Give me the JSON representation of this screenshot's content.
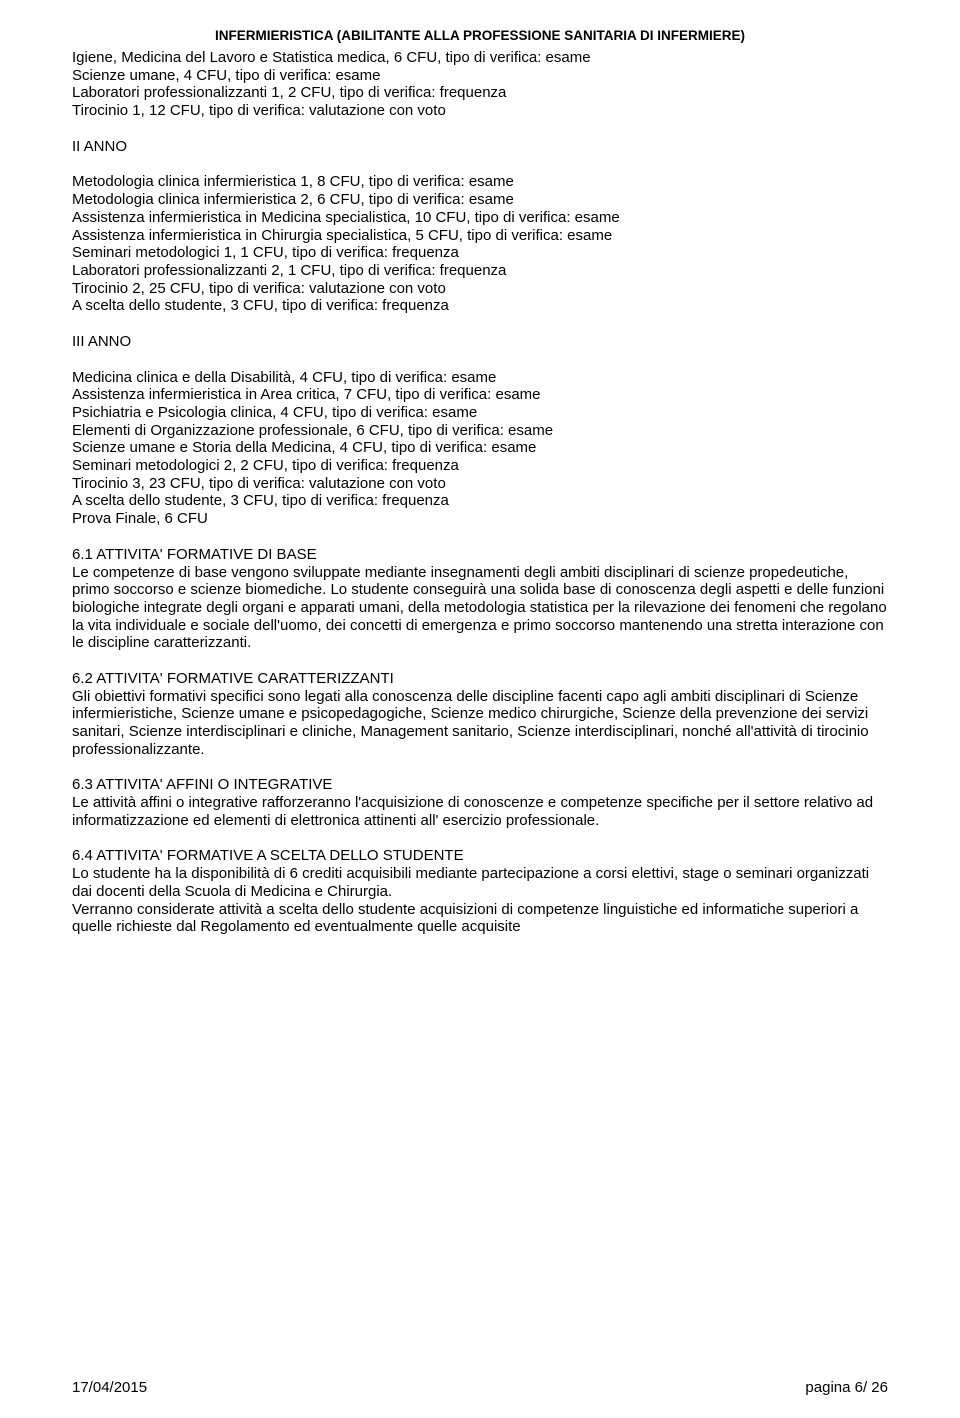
{
  "header": "INFERMIERISTICA (ABILITANTE ALLA PROFESSIONE SANITARIA DI INFERMIERE)",
  "anno1_lines": [
    "Igiene, Medicina del Lavoro e Statistica medica, 6 CFU, tipo di verifica: esame",
    "Scienze umane, 4 CFU, tipo di verifica: esame",
    "Laboratori professionalizzanti 1, 2 CFU, tipo di verifica: frequenza",
    "Tirocinio 1, 12 CFU, tipo di verifica: valutazione con voto"
  ],
  "anno2_label": "II ANNO",
  "anno2_lines": [
    "Metodologia clinica infermieristica 1, 8 CFU, tipo di verifica: esame",
    "Metodologia clinica infermieristica 2, 6 CFU, tipo di verifica: esame",
    "Assistenza infermieristica in Medicina specialistica, 10 CFU, tipo di verifica: esame",
    "Assistenza infermieristica in Chirurgia specialistica, 5 CFU, tipo di verifica: esame",
    "Seminari metodologici 1, 1 CFU, tipo di verifica: frequenza",
    "Laboratori professionalizzanti 2, 1 CFU, tipo di verifica: frequenza",
    "Tirocinio 2, 25 CFU, tipo di verifica: valutazione con voto",
    "A scelta dello studente, 3 CFU, tipo di verifica: frequenza"
  ],
  "anno3_label": "III ANNO",
  "anno3_lines": [
    "Medicina clinica e della Disabilità, 4 CFU, tipo di verifica: esame",
    "Assistenza infermieristica in Area critica, 7 CFU, tipo di verifica: esame",
    "Psichiatria e Psicologia clinica, 4 CFU, tipo di verifica: esame",
    "Elementi di Organizzazione professionale, 6 CFU, tipo di verifica: esame",
    "Scienze umane e Storia della Medicina, 4 CFU, tipo di verifica: esame",
    "Seminari metodologici 2, 2 CFU, tipo di verifica: frequenza",
    "Tirocinio 3, 23 CFU, tipo di verifica: valutazione con voto",
    "A scelta dello studente, 3 CFU, tipo di verifica: frequenza",
    "Prova Finale, 6 CFU"
  ],
  "s61_title": "6.1 ATTIVITA' FORMATIVE DI BASE",
  "s61_body": "Le competenze di base vengono sviluppate mediante insegnamenti degli ambiti disciplinari di scienze propedeutiche, primo soccorso e scienze biomediche. Lo studente conseguirà una solida base di conoscenza degli aspetti e delle funzioni biologiche integrate degli organi e apparati umani, della metodologia statistica per la rilevazione dei fenomeni che regolano la vita individuale e sociale dell'uomo, dei concetti di emergenza e primo soccorso mantenendo una stretta interazione con le discipline caratterizzanti.",
  "s62_title": "6.2 ATTIVITA' FORMATIVE CARATTERIZZANTI",
  "s62_body": "Gli obiettivi formativi specifici sono legati alla conoscenza delle discipline facenti capo agli ambiti disciplinari di Scienze infermieristiche, Scienze umane e psicopedagogiche, Scienze medico chirurgiche, Scienze della prevenzione dei servizi sanitari, Scienze interdisciplinari e cliniche, Management sanitario, Scienze interdisciplinari, nonché all'attività di tirocinio professionalizzante.",
  "s63_title": "6.3 ATTIVITA' AFFINI O INTEGRATIVE",
  "s63_body": "Le attività affini o integrative rafforzeranno l'acquisizione di conoscenze e competenze specifiche per il settore relativo ad informatizzazione ed elementi di elettronica attinenti all' esercizio professionale.",
  "s64_title": "6.4 ATTIVITA' FORMATIVE A SCELTA DELLO STUDENTE",
  "s64_body": "Lo studente ha la disponibilità di 6 crediti acquisibili mediante partecipazione a corsi elettivi, stage o seminari organizzati dai docenti della Scuola di Medicina e Chirurgia.\nVerranno considerate attività a scelta dello studente acquisizioni di competenze linguistiche ed informatiche superiori a quelle richieste dal Regolamento ed eventualmente quelle acquisite",
  "footer_date": "17/04/2015",
  "footer_page": "pagina 6/ 26"
}
